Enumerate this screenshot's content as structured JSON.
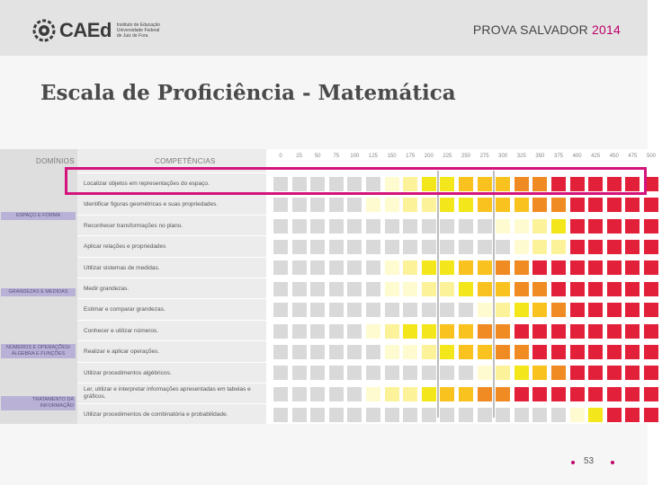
{
  "header": {
    "logo_text": "CAEd",
    "logo_sub": [
      "Instituto de Educação",
      "Universidade Federal",
      "de Juiz de Fora"
    ],
    "prova_label": "PROVA SALVADOR",
    "prova_year": "2014"
  },
  "title": "Escala de Proficiência - Matemática",
  "table": {
    "dominios_header": "DOMÍNIOS",
    "competencias_header": "COMPETÊNCIAS",
    "scale": [
      "0",
      "25",
      "50",
      "75",
      "100",
      "125",
      "150",
      "175",
      "200",
      "225",
      "250",
      "275",
      "300",
      "325",
      "350",
      "375",
      "400",
      "425",
      "450",
      "475",
      "500"
    ],
    "domains": [
      {
        "label": "ESPAÇO E FORMA"
      },
      {
        "label": "GRANDEZAS E MEDIDAS"
      },
      {
        "label": "NÚMEROS E OPERAÇÕES/ ÁLGEBRA E FUNÇÕES"
      },
      {
        "label": "TRATAMENTO DA INFORMAÇÃO"
      }
    ],
    "competencies": [
      {
        "label": "Localizar objetos em representações do espaço.",
        "levels": [
          0,
          0,
          0,
          0,
          0,
          0,
          1,
          2,
          3,
          3,
          4,
          4,
          4,
          5,
          5,
          6,
          6,
          6,
          6,
          6,
          6
        ]
      },
      {
        "label": "Identificar figuras geométricas e suas propriedades.",
        "levels": [
          0,
          0,
          0,
          0,
          0,
          1,
          1,
          2,
          2,
          3,
          3,
          4,
          4,
          4,
          5,
          5,
          6,
          6,
          6,
          6,
          6
        ]
      },
      {
        "label": "Reconhecer transformações no plano.",
        "levels": [
          0,
          0,
          0,
          0,
          0,
          0,
          0,
          0,
          0,
          0,
          0,
          0,
          1,
          1,
          2,
          3,
          6,
          6,
          6,
          6,
          6
        ]
      },
      {
        "label": "Aplicar relações e propriedades",
        "levels": [
          0,
          0,
          0,
          0,
          0,
          0,
          0,
          0,
          0,
          0,
          0,
          0,
          0,
          1,
          2,
          2,
          6,
          6,
          6,
          6,
          6
        ]
      },
      {
        "label": "Utilizar sistemas de medidas.",
        "levels": [
          0,
          0,
          0,
          0,
          0,
          0,
          1,
          2,
          3,
          3,
          4,
          4,
          5,
          5,
          6,
          6,
          6,
          6,
          6,
          6,
          6
        ]
      },
      {
        "label": "Medir grandezas.",
        "levels": [
          0,
          0,
          0,
          0,
          0,
          0,
          1,
          1,
          2,
          2,
          3,
          4,
          4,
          5,
          5,
          6,
          6,
          6,
          6,
          6,
          6
        ]
      },
      {
        "label": "Estimar e comparar grandezas.",
        "levels": [
          0,
          0,
          0,
          0,
          0,
          0,
          0,
          0,
          0,
          0,
          0,
          1,
          2,
          3,
          4,
          5,
          6,
          6,
          6,
          6,
          6
        ]
      },
      {
        "label": "Conhecer e utilizar números.",
        "levels": [
          0,
          0,
          0,
          0,
          0,
          1,
          2,
          3,
          3,
          4,
          4,
          5,
          5,
          6,
          6,
          6,
          6,
          6,
          6,
          6,
          6
        ]
      },
      {
        "label": "Realizar e aplicar operações.",
        "levels": [
          0,
          0,
          0,
          0,
          0,
          0,
          1,
          1,
          2,
          3,
          4,
          4,
          5,
          5,
          6,
          6,
          6,
          6,
          6,
          6,
          6
        ]
      },
      {
        "label": "Utilizar procedimentos algébricos.",
        "levels": [
          0,
          0,
          0,
          0,
          0,
          0,
          0,
          0,
          0,
          0,
          0,
          1,
          2,
          3,
          4,
          5,
          6,
          6,
          6,
          6,
          6
        ]
      },
      {
        "label": "Ler, utilizar e interpretar informações apresentadas em tabelas e gráficos.",
        "levels": [
          0,
          0,
          0,
          0,
          0,
          1,
          2,
          2,
          3,
          4,
          4,
          5,
          5,
          6,
          6,
          6,
          6,
          6,
          6,
          6,
          6
        ]
      },
      {
        "label": "Utilizar procedimentos de combinatória e probabilidade.",
        "levels": [
          0,
          0,
          0,
          0,
          0,
          0,
          0,
          0,
          0,
          0,
          0,
          0,
          0,
          0,
          0,
          0,
          1,
          3,
          6,
          6,
          6
        ]
      }
    ],
    "level_colors": [
      "#d9d9d9",
      "#fffbd0",
      "#fbf29a",
      "#f3e61a",
      "#f9c21e",
      "#f08a23",
      "#e3203a"
    ]
  },
  "footer": {
    "page": "53"
  }
}
